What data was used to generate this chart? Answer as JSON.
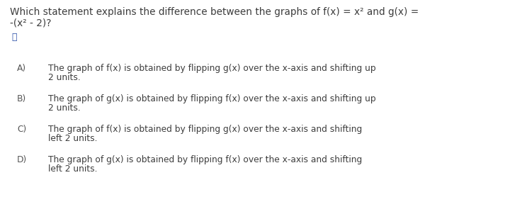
{
  "background_color": "#ffffff",
  "question_line1": "Which statement explains the difference between the graphs of f(x) = x² and g(x) =",
  "question_line2": "-(x² - 2)?",
  "options": [
    {
      "label": "A)",
      "line1": "The graph of f(x) is obtained by flipping g(x) over the x-axis and shifting up",
      "line2": "2 units."
    },
    {
      "label": "B)",
      "line1": "The graph of g(x) is obtained by flipping f(x) over the x-axis and shifting up",
      "line2": "2 units."
    },
    {
      "label": "C)",
      "line1": "The graph of f(x) is obtained by flipping g(x) over the x-axis and shifting",
      "line2": "left 2 units."
    },
    {
      "label": "D)",
      "line1": "The graph of g(x) is obtained by flipping f(x) over the x-axis and shifting",
      "line2": "left 2 units."
    }
  ],
  "text_color": "#3d3d3d",
  "label_color": "#555555",
  "question_fontsize": 9.8,
  "option_fontsize": 8.8,
  "label_fontsize": 8.8,
  "speaker_color": "#2b4fa8",
  "fig_width": 7.2,
  "fig_height": 2.78,
  "dpi": 100
}
